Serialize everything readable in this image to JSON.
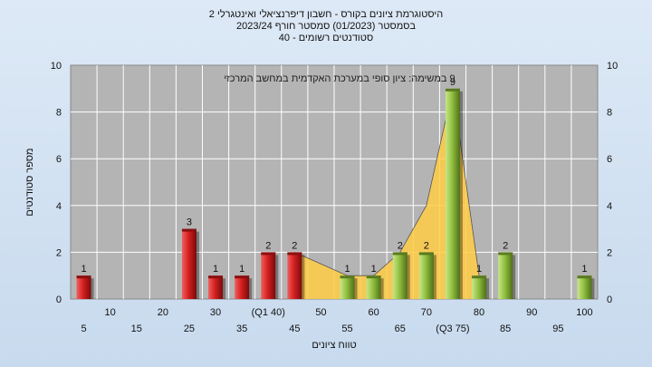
{
  "title_lines": [
    "היסטוגרמת ציונים בקורס - חשבון דיפרנציאלי ואינטגרלי 2",
    "בסמסטר  (01/2023)  סמסטר חורף 2023/24",
    "סטודנטים רשומים - 40"
  ],
  "annotation": "9 במשימה: ציון סופי במערכת האקדמית במחשב המרכזי",
  "colors": {
    "plot_bg": "#b4b4b4",
    "grid": "#ffffff",
    "below_bar": "#d42020",
    "above_bar": "#9ac44a",
    "area": "#ffcc44"
  },
  "chart_data": {
    "type": "bar",
    "xlabel": "טווח ציונים",
    "ylabel": "מספר סטודנטים",
    "ylim": [
      0,
      10
    ],
    "yticks": [
      0,
      2,
      4,
      6,
      8,
      10
    ],
    "grid": true,
    "x_tick_rows": {
      "upper": [
        "10",
        "20",
        "30",
        "(Q1 40)",
        "50",
        "60",
        "70",
        "80",
        "90",
        "100"
      ],
      "lower": [
        "5",
        "15",
        "25",
        "35",
        "45",
        "55",
        "65",
        "(Q3 75)",
        "85",
        "95"
      ]
    },
    "bars": [
      {
        "x": 5,
        "value": 1,
        "group": "below"
      },
      {
        "x": 25,
        "value": 3,
        "group": "below"
      },
      {
        "x": 30,
        "value": 1,
        "group": "below"
      },
      {
        "x": 35,
        "value": 1,
        "group": "below"
      },
      {
        "x": 40,
        "value": 2,
        "group": "below"
      },
      {
        "x": 45,
        "value": 2,
        "group": "below"
      },
      {
        "x": 55,
        "value": 1,
        "group": "above"
      },
      {
        "x": 60,
        "value": 1,
        "group": "above"
      },
      {
        "x": 65,
        "value": 2,
        "group": "above"
      },
      {
        "x": 70,
        "value": 2,
        "group": "above"
      },
      {
        "x": 75,
        "value": 9,
        "group": "above"
      },
      {
        "x": 80,
        "value": 1,
        "group": "above"
      },
      {
        "x": 85,
        "value": 2,
        "group": "above"
      },
      {
        "x": 100,
        "value": 1,
        "group": "above"
      }
    ],
    "area_series": [
      {
        "x": 45,
        "y": 2
      },
      {
        "x": 50,
        "y": 1.5
      },
      {
        "x": 55,
        "y": 1
      },
      {
        "x": 60,
        "y": 1
      },
      {
        "x": 65,
        "y": 2
      },
      {
        "x": 70,
        "y": 4
      },
      {
        "x": 75,
        "y": 9
      },
      {
        "x": 80,
        "y": 1
      }
    ]
  }
}
